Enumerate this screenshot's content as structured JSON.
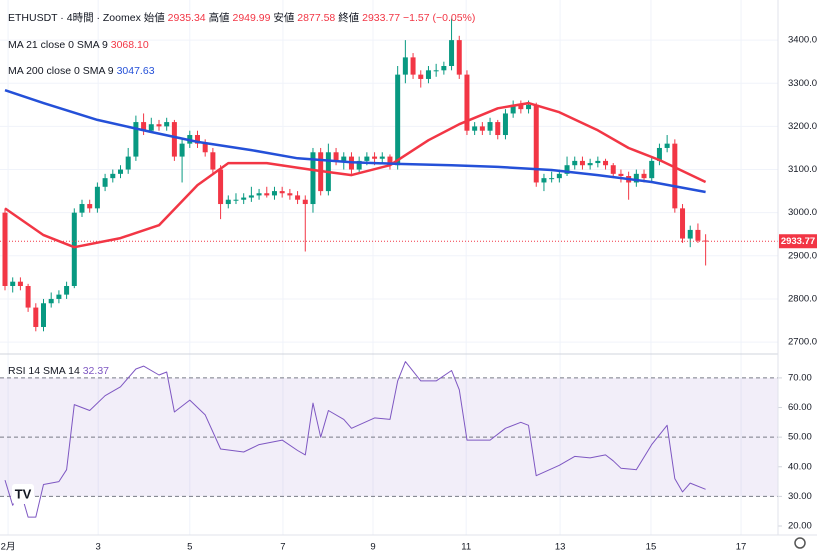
{
  "chart_data": {
    "type": "candlestick",
    "title": "ETHUSDT · 4時間 · Zoomex",
    "ohlc_names": [
      "始値",
      "高値",
      "安値",
      "終値"
    ],
    "change_label": "−1.57 (−0.05%)",
    "xlim": [
      -0.65,
      100.4
    ],
    "xticks": [
      {
        "value": 0.4,
        "label": "2月"
      },
      {
        "value": 12.1,
        "label": "3"
      },
      {
        "value": 24,
        "label": "5"
      },
      {
        "value": 36.1,
        "label": "7"
      },
      {
        "value": 47.8,
        "label": "9"
      },
      {
        "value": 59.9,
        "label": "11"
      },
      {
        "value": 72.1,
        "label": "13"
      },
      {
        "value": 83.9,
        "label": "15"
      },
      {
        "value": 95.6,
        "label": "17"
      }
    ],
    "ylim": [
      2677,
      3493
    ],
    "yticks": [
      {
        "value": 2700,
        "label": "2700.00"
      },
      {
        "value": 2800,
        "label": "2800.00"
      },
      {
        "value": 2900,
        "label": "2900.00"
      },
      {
        "value": 3000,
        "label": "3000.00"
      },
      {
        "value": 3100,
        "label": "3100.00"
      },
      {
        "value": 3200,
        "label": "3200.00"
      },
      {
        "value": 3300,
        "label": "3300.00"
      },
      {
        "value": 3400,
        "label": "3400.00"
      }
    ],
    "up_color": "#089981",
    "down_color": "#f23645",
    "candles": [
      [
        3000,
        3010,
        2820,
        2830
      ],
      [
        2830,
        2850,
        2815,
        2840
      ],
      [
        2840,
        2850,
        2820,
        2830
      ],
      [
        2830,
        2835,
        2770,
        2780
      ],
      [
        2780,
        2790,
        2725,
        2735
      ],
      [
        2735,
        2800,
        2725,
        2790
      ],
      [
        2790,
        2815,
        2780,
        2800
      ],
      [
        2800,
        2820,
        2790,
        2810
      ],
      [
        2810,
        2840,
        2800,
        2830
      ],
      [
        2830,
        3010,
        2825,
        3000
      ],
      [
        3000,
        3030,
        2990,
        3020
      ],
      [
        3020,
        3030,
        3000,
        3010
      ],
      [
        3010,
        3070,
        3000,
        3060
      ],
      [
        3060,
        3090,
        3050,
        3080
      ],
      [
        3080,
        3100,
        3070,
        3090
      ],
      [
        3090,
        3110,
        3080,
        3100
      ],
      [
        3100,
        3150,
        3090,
        3130
      ],
      [
        3130,
        3225,
        3120,
        3210
      ],
      [
        3210,
        3230,
        3180,
        3190
      ],
      [
        3190,
        3220,
        3185,
        3205
      ],
      [
        3205,
        3215,
        3190,
        3200
      ],
      [
        3200,
        3220,
        3190,
        3210
      ],
      [
        3210,
        3215,
        3120,
        3130
      ],
      [
        3130,
        3170,
        3070,
        3160
      ],
      [
        3160,
        3190,
        3150,
        3180
      ],
      [
        3180,
        3190,
        3150,
        3160
      ],
      [
        3160,
        3170,
        3130,
        3140
      ],
      [
        3140,
        3150,
        3090,
        3100
      ],
      [
        3100,
        3110,
        2985,
        3020
      ],
      [
        3020,
        3040,
        3010,
        3030
      ],
      [
        3030,
        3045,
        3020,
        3030
      ],
      [
        3030,
        3045,
        3020,
        3035
      ],
      [
        3035,
        3060,
        3025,
        3040
      ],
      [
        3040,
        3055,
        3030,
        3045
      ],
      [
        3045,
        3060,
        3035,
        3040
      ],
      [
        3040,
        3060,
        3030,
        3050
      ],
      [
        3050,
        3060,
        3035,
        3045
      ],
      [
        3045,
        3055,
        3030,
        3040
      ],
      [
        3040,
        3050,
        3020,
        3030
      ],
      [
        3030,
        3040,
        2910,
        3020
      ],
      [
        3020,
        3150,
        3000,
        3140
      ],
      [
        3140,
        3150,
        3040,
        3050
      ],
      [
        3050,
        3160,
        3040,
        3140
      ],
      [
        3140,
        3150,
        3110,
        3120
      ],
      [
        3120,
        3140,
        3100,
        3130
      ],
      [
        3130,
        3140,
        3090,
        3100
      ],
      [
        3100,
        3130,
        3090,
        3120
      ],
      [
        3120,
        3140,
        3110,
        3130
      ],
      [
        3130,
        3140,
        3110,
        3125
      ],
      [
        3125,
        3140,
        3115,
        3130
      ],
      [
        3130,
        3135,
        3100,
        3110
      ],
      [
        3110,
        3340,
        3100,
        3320
      ],
      [
        3320,
        3400,
        3300,
        3360
      ],
      [
        3360,
        3370,
        3310,
        3320
      ],
      [
        3320,
        3330,
        3290,
        3310
      ],
      [
        3310,
        3340,
        3300,
        3330
      ],
      [
        3330,
        3345,
        3315,
        3330
      ],
      [
        3330,
        3350,
        3320,
        3340
      ],
      [
        3340,
        3450,
        3330,
        3400
      ],
      [
        3400,
        3410,
        3310,
        3320
      ],
      [
        3320,
        3330,
        3180,
        3190
      ],
      [
        3190,
        3210,
        3180,
        3200
      ],
      [
        3200,
        3210,
        3180,
        3190
      ],
      [
        3190,
        3220,
        3180,
        3210
      ],
      [
        3210,
        3215,
        3170,
        3180
      ],
      [
        3180,
        3240,
        3170,
        3230
      ],
      [
        3230,
        3260,
        3220,
        3250
      ],
      [
        3250,
        3260,
        3230,
        3240
      ],
      [
        3240,
        3260,
        3230,
        3250
      ],
      [
        3250,
        3255,
        3060,
        3070
      ],
      [
        3070,
        3090,
        3050,
        3080
      ],
      [
        3080,
        3095,
        3070,
        3080
      ],
      [
        3080,
        3100,
        3070,
        3090
      ],
      [
        3090,
        3130,
        3085,
        3110
      ],
      [
        3110,
        3130,
        3100,
        3120
      ],
      [
        3120,
        3130,
        3100,
        3110
      ],
      [
        3110,
        3125,
        3100,
        3115
      ],
      [
        3115,
        3130,
        3105,
        3120
      ],
      [
        3120,
        3125,
        3100,
        3110
      ],
      [
        3110,
        3115,
        3080,
        3090
      ],
      [
        3090,
        3100,
        3070,
        3085
      ],
      [
        3085,
        3095,
        3030,
        3070
      ],
      [
        3070,
        3100,
        3060,
        3090
      ],
      [
        3090,
        3100,
        3070,
        3080
      ],
      [
        3080,
        3130,
        3070,
        3120
      ],
      [
        3120,
        3160,
        3110,
        3150
      ],
      [
        3150,
        3180,
        3140,
        3160
      ],
      [
        3160,
        3170,
        3000,
        3010
      ],
      [
        3010,
        3020,
        2930,
        2940
      ],
      [
        2940,
        2970,
        2920,
        2960
      ],
      [
        2960,
        2975,
        2930,
        2935
      ],
      [
        2935.34,
        2949.99,
        2877.58,
        2933.77
      ]
    ],
    "series": [
      {
        "name": "MA 21 close 0 SMA 9",
        "last_label": "3068.10",
        "color": "#f23645",
        "x": [
          0,
          5,
          9,
          15,
          20,
          25,
          29,
          34,
          40,
          45,
          50,
          55,
          59,
          64,
          68,
          72,
          77,
          81,
          85,
          91
        ],
        "values": [
          3010,
          2948,
          2920,
          2941,
          2971,
          3064,
          3115,
          3115,
          3099,
          3087,
          3110,
          3168,
          3205,
          3242,
          3254,
          3233,
          3191,
          3150,
          3122,
          3071
        ]
      },
      {
        "name": "MA 200 close 0 SMA 9",
        "last_label": "3047.63",
        "color": "#2450d8",
        "x": [
          0,
          5,
          12,
          19,
          25,
          32,
          38,
          45,
          51,
          58,
          64,
          71,
          77,
          84,
          91
        ],
        "values": [
          3284,
          3254,
          3215,
          3187,
          3164,
          3145,
          3126,
          3117,
          3113,
          3110,
          3106,
          3099,
          3087,
          3071,
          3048
        ]
      }
    ],
    "rsi": {
      "name": "RSI 14 SMA 14",
      "last_label": "32.37",
      "color": "#7e57c2",
      "ylim": [
        17.3,
        77.4
      ],
      "yticks": [
        {
          "value": 20,
          "label": "20.00"
        },
        {
          "value": 30,
          "label": "30.00"
        },
        {
          "value": 40,
          "label": "40.00"
        },
        {
          "value": 50,
          "label": "50.00"
        },
        {
          "value": 60,
          "label": "60.00"
        },
        {
          "value": 70,
          "label": "70.00"
        }
      ],
      "band": [
        30,
        70
      ],
      "levels": [
        30,
        50,
        70
      ],
      "x": [
        0,
        1,
        2,
        3,
        4,
        5,
        7,
        8,
        9,
        11,
        13,
        15,
        17,
        18,
        20,
        21,
        22,
        24,
        26,
        28,
        31,
        33,
        36,
        38,
        39,
        40,
        41,
        42,
        44,
        45,
        48,
        50,
        51,
        52,
        54,
        56,
        58,
        59,
        60,
        63,
        65,
        67,
        68,
        69,
        72,
        74,
        76,
        78,
        79,
        80,
        82,
        84,
        86,
        87,
        88,
        89,
        91
      ],
      "values": [
        35.5,
        27,
        32,
        23,
        23,
        34,
        35,
        39,
        61,
        59,
        64,
        67,
        73,
        74,
        71,
        72,
        58.5,
        62.5,
        57.5,
        46,
        45,
        47.5,
        49,
        45.5,
        44,
        61.5,
        50,
        59,
        56,
        53,
        56.5,
        56,
        69,
        75.5,
        69,
        69,
        72.5,
        66,
        49,
        49,
        53,
        55,
        54,
        37,
        40.5,
        43.5,
        43,
        44,
        42,
        39.5,
        39,
        47.5,
        54,
        36,
        31.5,
        34.5,
        32.4
      ]
    }
  }
}
